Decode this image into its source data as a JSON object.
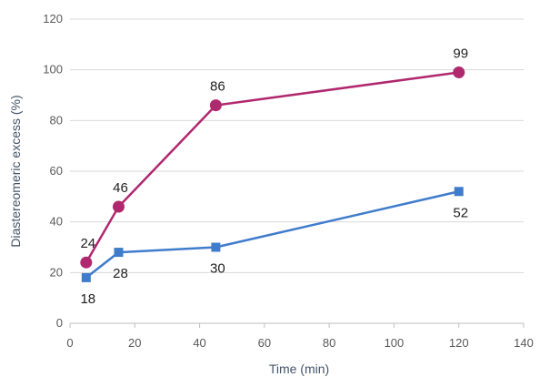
{
  "chart_data": {
    "type": "line",
    "xlabel": "Time (min)",
    "ylabel": "Diastereomeric excess (%)",
    "xlim": [
      0,
      140
    ],
    "ylim": [
      0,
      120
    ],
    "xticks": [
      "0",
      "20",
      "40",
      "60",
      "80",
      "100",
      "120",
      "140"
    ],
    "yticks": [
      "0",
      "20",
      "40",
      "60",
      "80",
      "100",
      "120"
    ],
    "grid": "horizontal",
    "legend": "none",
    "series": [
      {
        "color": "#b0286e",
        "marker": "circle",
        "points": [
          {
            "x": 5,
            "y": 24,
            "label": "24",
            "label_pos": "above"
          },
          {
            "x": 15,
            "y": 46,
            "label": "46",
            "label_pos": "above"
          },
          {
            "x": 45,
            "y": 86,
            "label": "86",
            "label_pos": "above"
          },
          {
            "x": 120,
            "y": 99,
            "label": "99",
            "label_pos": "above"
          }
        ]
      },
      {
        "color": "#3f7ccc",
        "marker": "square",
        "points": [
          {
            "x": 5,
            "y": 18,
            "label": "18",
            "label_pos": "below"
          },
          {
            "x": 15,
            "y": 28,
            "label": "28",
            "label_pos": "below"
          },
          {
            "x": 45,
            "y": 30,
            "label": "30",
            "label_pos": "below"
          },
          {
            "x": 120,
            "y": 52,
            "label": "52",
            "label_pos": "below"
          }
        ]
      }
    ]
  }
}
